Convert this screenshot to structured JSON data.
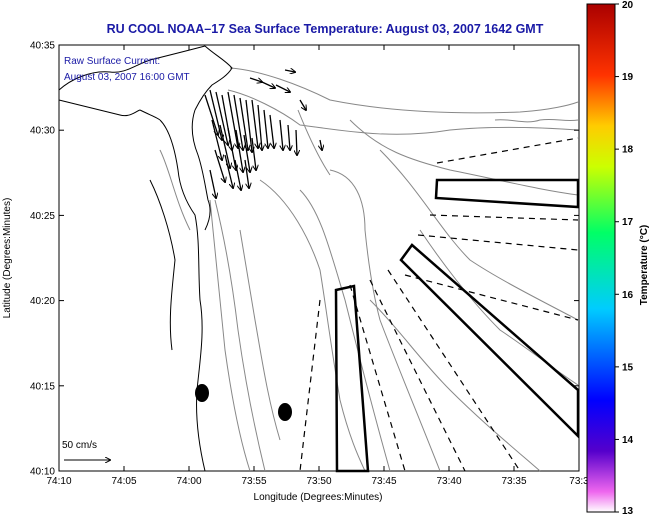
{
  "title": "RU COOL  NOAA–17  Sea Surface Temperature:  August 03, 2007 1642 GMT",
  "current_note": {
    "line1": "Raw Surface Current:",
    "line2": "August 03, 2007 16:00 GMT"
  },
  "scale_label": "50 cm/s",
  "axes": {
    "xlabel": "Longitude (Degrees:Minutes)",
    "ylabel": "Latitude (Degrees:Minutes)",
    "xticks": [
      "74:10",
      "74:05",
      "74:00",
      "73:55",
      "73:50",
      "73:45",
      "73:40",
      "73:35",
      "73:3"
    ],
    "yticks": [
      "40:35",
      "40:30",
      "40:25",
      "40:20",
      "40:15",
      "40:10"
    ]
  },
  "colorbar": {
    "label": "Temperature (°C)",
    "ticks": [
      "20",
      "19",
      "18",
      "17",
      "16",
      "15",
      "14",
      "13"
    ],
    "range": [
      13,
      20
    ],
    "colors": [
      "#ffffff",
      "#cc00cc",
      "#0000ff",
      "#00ccff",
      "#00ff66",
      "#ccff00",
      "#ffcc00",
      "#ff3300",
      "#aa0000"
    ]
  },
  "colors": {
    "title": "#1a1aa6",
    "coast": "#000000",
    "bathymetry": "#888888"
  }
}
